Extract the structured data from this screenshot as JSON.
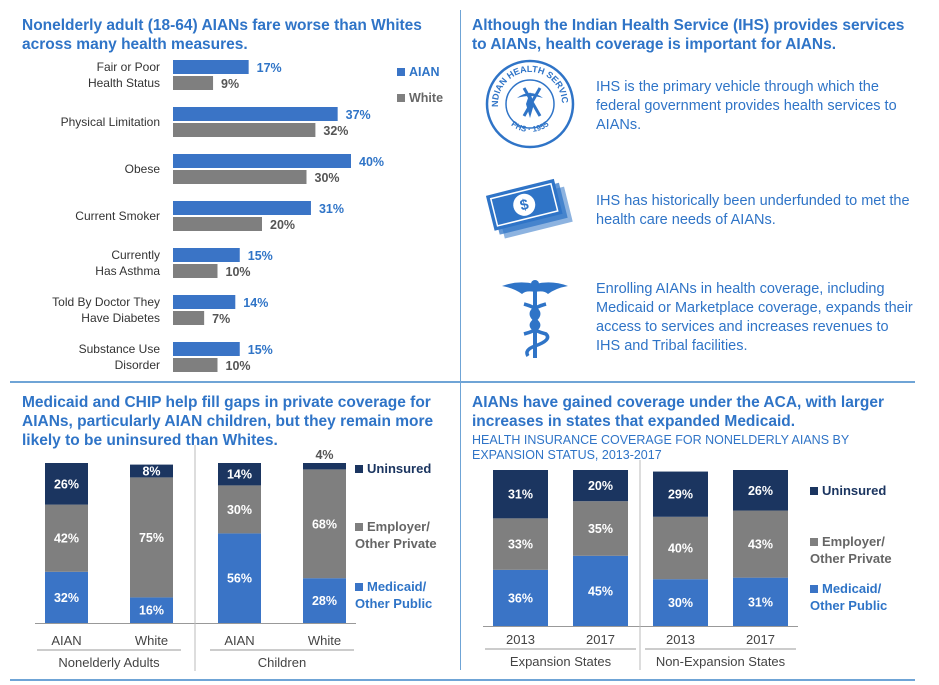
{
  "colors": {
    "aian": "#3a74c6",
    "white": "#7f7f7f",
    "uninsured": "#1b3560",
    "employer": "#7f7f7f",
    "medicaid": "#3a74c6",
    "accent": "#2f74c7"
  },
  "top_left_title": "Nonelderly adult (18-64) AIANs fare worse than Whites across many health measures.",
  "top_right_title": "Although the Indian Health Service (IHS) provides services to AIANs, health coverage is important for AIANs.",
  "info_items": [
    {
      "icon": "ihs-seal-icon",
      "seal_top": "INDIAN HEALTH SERVICE",
      "seal_bottom": "PHS · 1955",
      "text": "IHS is the primary vehicle through which the federal government provides health services to AIANs."
    },
    {
      "icon": "money-icon",
      "text": "IHS has historically been underfunded to met the health care needs of AIANs."
    },
    {
      "icon": "caduceus-icon",
      "text": "Enrolling AIANs in health coverage, including Medicaid or Marketplace coverage, expands their access to services and increases revenues to IHS and Tribal facilities."
    }
  ],
  "bottom_left_title": "Medicaid and CHIP help fill gaps in private coverage for AIANs, particularly AIAN children, but they remain more likely to be uninsured than Whites.",
  "bottom_right_title": "AIANs have gained coverage under the ACA, with larger increases in states that expanded Medicaid.",
  "bottom_right_subtitle": "HEALTH INSURANCE COVERAGE FOR NONELDERLY AIANS BY EXPANSION STATUS, 2013-2017",
  "chart_data": [
    {
      "type": "bar",
      "orientation": "horizontal",
      "categories": [
        [
          "Fair or Poor",
          "Health Status"
        ],
        [
          "Physical Limitation"
        ],
        [
          "Obese"
        ],
        [
          "Current Smoker"
        ],
        [
          "Currently",
          "Has Asthma"
        ],
        [
          "Told By Doctor They",
          "Have Diabetes"
        ],
        [
          "Substance Use",
          "Disorder"
        ]
      ],
      "series": [
        {
          "name": "AIAN",
          "values": [
            17,
            37,
            40,
            31,
            15,
            14,
            15
          ]
        },
        {
          "name": "White",
          "values": [
            9,
            32,
            30,
            20,
            10,
            7,
            10
          ]
        }
      ],
      "value_suffix": "%",
      "legend_position": "top-right",
      "xlim": [
        0,
        45
      ]
    },
    {
      "type": "bar",
      "stacked": true,
      "categories": [
        "AIAN",
        "White",
        "AIAN",
        "White"
      ],
      "groups": [
        {
          "label": "Nonelderly Adults",
          "span": [
            0,
            1
          ]
        },
        {
          "label": "Children",
          "span": [
            2,
            3
          ]
        }
      ],
      "series": [
        {
          "name": "Medicaid/ Other Public",
          "values": [
            32,
            16,
            56,
            28
          ]
        },
        {
          "name": "Employer/ Other Private",
          "values": [
            42,
            75,
            30,
            68
          ]
        },
        {
          "name": "Uninsured",
          "values": [
            26,
            8,
            14,
            4
          ]
        }
      ],
      "value_suffix": "%",
      "legend_position": "right",
      "ylim": [
        0,
        100
      ]
    },
    {
      "type": "bar",
      "stacked": true,
      "categories": [
        "2013",
        "2017",
        "2013",
        "2017"
      ],
      "groups": [
        {
          "label": "Expansion States",
          "span": [
            0,
            1
          ]
        },
        {
          "label": "Non-Expansion States",
          "span": [
            2,
            3
          ]
        }
      ],
      "series": [
        {
          "name": "Medicaid/ Other Public",
          "values": [
            36,
            45,
            30,
            31
          ]
        },
        {
          "name": "Employer/ Other Private",
          "values": [
            33,
            35,
            40,
            43
          ]
        },
        {
          "name": "Uninsured",
          "values": [
            31,
            20,
            29,
            26
          ]
        }
      ],
      "value_suffix": "%",
      "legend_position": "right",
      "ylim": [
        0,
        100
      ]
    }
  ]
}
